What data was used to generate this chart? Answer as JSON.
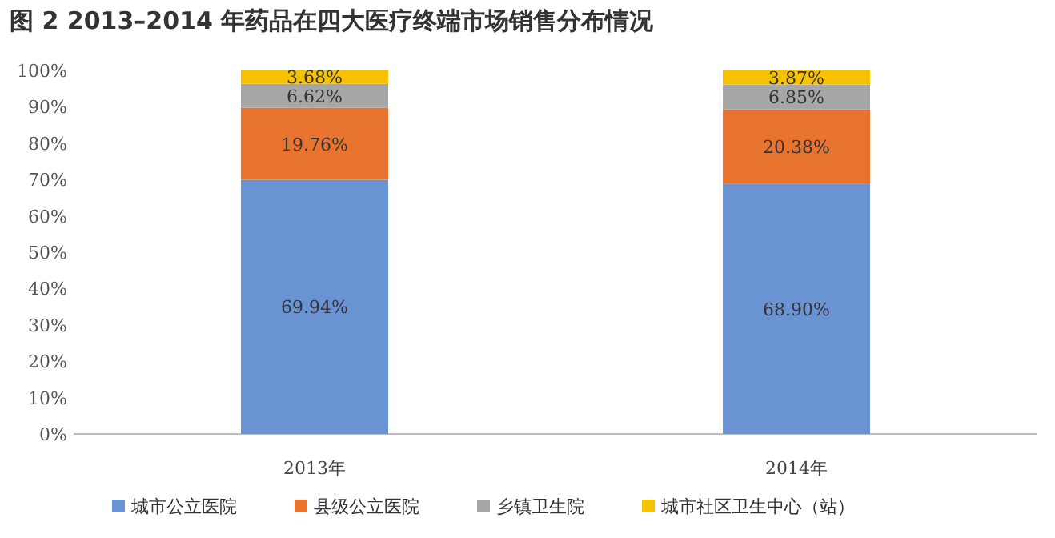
{
  "chart_data": {
    "type": "bar",
    "stacked": true,
    "title": "图 2  2013–2014 年药品在四大医疗终端市场销售分布情况",
    "categories": [
      "2013年",
      "2014年"
    ],
    "series": [
      {
        "name": "城市公立医院",
        "color": "#6a93d4",
        "values": [
          69.94,
          68.9
        ],
        "value_labels": [
          "69.94%",
          "68.90%"
        ]
      },
      {
        "name": "县级公立医院",
        "color": "#e8742f",
        "values": [
          19.76,
          20.38
        ],
        "value_labels": [
          "19.76%",
          "20.38%"
        ]
      },
      {
        "name": "乡镇卫生院",
        "color": "#a7a7a7",
        "values": [
          6.62,
          6.85
        ],
        "value_labels": [
          "6.62%",
          "6.85%"
        ]
      },
      {
        "name": "城市社区卫生中心（站）",
        "color": "#f6c200",
        "values": [
          3.68,
          3.87
        ],
        "value_labels": [
          "3.68%",
          "3.87%"
        ]
      }
    ],
    "ylim": [
      0,
      100
    ],
    "yticks": [
      {
        "value": 0,
        "label": "0%"
      },
      {
        "value": 10,
        "label": "10%"
      },
      {
        "value": 20,
        "label": "20%"
      },
      {
        "value": 30,
        "label": "30%"
      },
      {
        "value": 40,
        "label": "40%"
      },
      {
        "value": 50,
        "label": "50%"
      },
      {
        "value": 60,
        "label": "60%"
      },
      {
        "value": 70,
        "label": "70%"
      },
      {
        "value": 80,
        "label": "80%"
      },
      {
        "value": 90,
        "label": "90%"
      },
      {
        "value": 100,
        "label": "100%"
      }
    ],
    "legend": "bottom",
    "grid": false
  }
}
